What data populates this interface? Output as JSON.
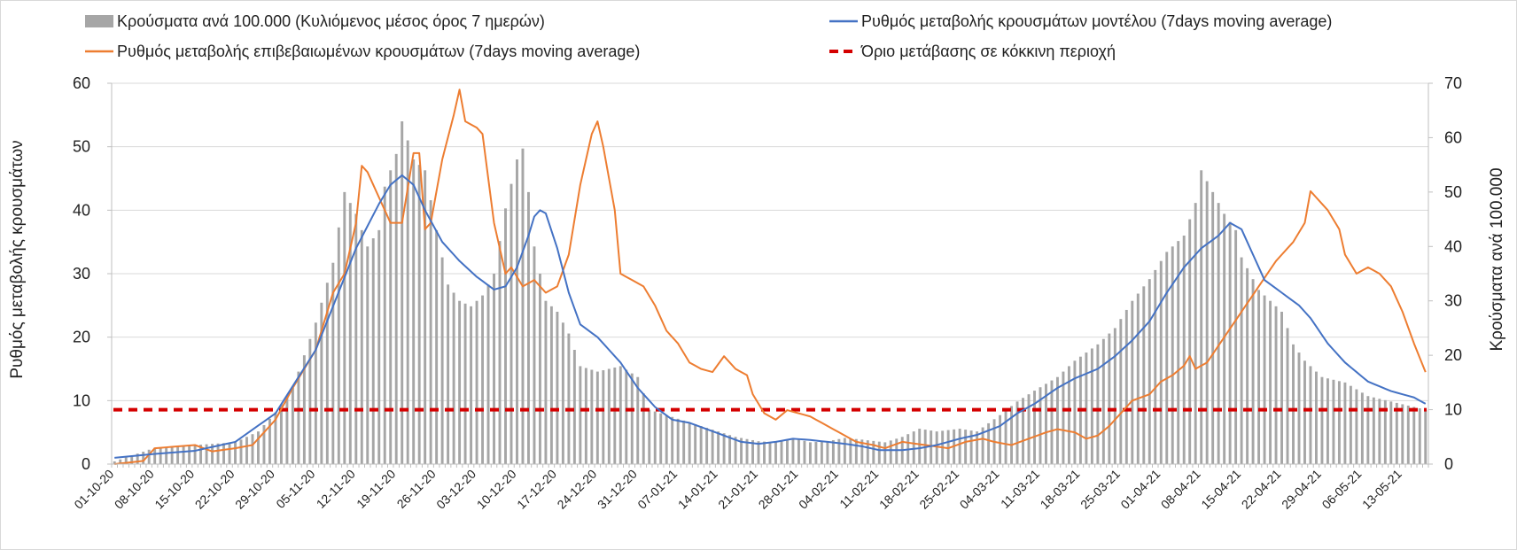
{
  "chart_data": {
    "type": "bar+line",
    "legend": {
      "placement": "top",
      "bars": "Κρούσματα ανά 100.000 (Κυλιόμενος μέσος όρος 7 ημερών)",
      "model_line": "Ρυθμός μεταβολής κρουσμάτων μοντέλου (7days moving average)",
      "confirmed_line": "Ρυθμός μεταβολής επιβεβαιωμένων κρουσμάτων (7days moving average)",
      "threshold_line": "Όριο μετάβασης σε κόκκινη περιοχή"
    },
    "ylabel_left": "Ρυθμός μεταβολής κρουσμάτων",
    "ylabel_right": "Κρούσματα ανά 100.000",
    "ylim_left": [
      0,
      60
    ],
    "ylim_right": [
      0,
      70
    ],
    "yticks_left": [
      "0",
      "10",
      "20",
      "30",
      "40",
      "50",
      "60"
    ],
    "yticks_right": [
      "0",
      "10",
      "20",
      "30",
      "40",
      "50",
      "60",
      "70"
    ],
    "grid": "horizontal",
    "x_start": "01-10-20",
    "x_end": "17-05-21",
    "xtick_labels": [
      "01-10-20",
      "08-10-20",
      "15-10-20",
      "22-10-20",
      "29-10-20",
      "05-11-20",
      "12-11-20",
      "19-11-20",
      "26-11-20",
      "03-12-20",
      "10-12-20",
      "17-12-20",
      "24-12-20",
      "31-12-20",
      "07-01-21",
      "14-01-21",
      "21-01-21",
      "28-01-21",
      "04-02-21",
      "11-02-21",
      "18-02-21",
      "25-02-21",
      "04-03-21",
      "11-03-21",
      "18-03-21",
      "25-03-21",
      "01-04-21",
      "08-04-21",
      "15-04-21",
      "22-04-21",
      "29-04-21",
      "06-05-21",
      "13-05-21"
    ],
    "threshold_right_axis": 10,
    "bars_anchors_per100k": [
      [
        0,
        0.5
      ],
      [
        7,
        3
      ],
      [
        14,
        3.5
      ],
      [
        21,
        4
      ],
      [
        25,
        6
      ],
      [
        28,
        9.5
      ],
      [
        31,
        14
      ],
      [
        35,
        26
      ],
      [
        38,
        37
      ],
      [
        40,
        50
      ],
      [
        42,
        46
      ],
      [
        44,
        40
      ],
      [
        46,
        43
      ],
      [
        47,
        51
      ],
      [
        49,
        57
      ],
      [
        50,
        63
      ],
      [
        52,
        56
      ],
      [
        54,
        54
      ],
      [
        56,
        43
      ],
      [
        58,
        33
      ],
      [
        60,
        30
      ],
      [
        62,
        29
      ],
      [
        64,
        31
      ],
      [
        66,
        35
      ],
      [
        68,
        47
      ],
      [
        70,
        56
      ],
      [
        71,
        58
      ],
      [
        72,
        50
      ],
      [
        73,
        40
      ],
      [
        75,
        30
      ],
      [
        77,
        28
      ],
      [
        79,
        24
      ],
      [
        81,
        18
      ],
      [
        84,
        17
      ],
      [
        88,
        18
      ],
      [
        91,
        16
      ],
      [
        92,
        13
      ],
      [
        93,
        10
      ],
      [
        96,
        9
      ],
      [
        99,
        8
      ],
      [
        102,
        7
      ],
      [
        105,
        6
      ],
      [
        108,
        5
      ],
      [
        112,
        4.2
      ],
      [
        115,
        4
      ],
      [
        118,
        4.8
      ],
      [
        121,
        4
      ],
      [
        124,
        4.2
      ],
      [
        127,
        4.8
      ],
      [
        130,
        4.5
      ],
      [
        134,
        4
      ],
      [
        137,
        5
      ],
      [
        140,
        6.5
      ],
      [
        143,
        6
      ],
      [
        147,
        6.5
      ],
      [
        150,
        6
      ],
      [
        154,
        9
      ],
      [
        157,
        11.5
      ],
      [
        160,
        13.5
      ],
      [
        164,
        16
      ],
      [
        167,
        19
      ],
      [
        171,
        22
      ],
      [
        174,
        25
      ],
      [
        177,
        30
      ],
      [
        180,
        34
      ],
      [
        183,
        39
      ],
      [
        186,
        42
      ],
      [
        188,
        48
      ],
      [
        189,
        54
      ],
      [
        190,
        52
      ],
      [
        191,
        50
      ],
      [
        193,
        46
      ],
      [
        195,
        43
      ],
      [
        196,
        38
      ],
      [
        199,
        32
      ],
      [
        203,
        28
      ],
      [
        205,
        22
      ],
      [
        207,
        19
      ],
      [
        210,
        16
      ],
      [
        214,
        15
      ],
      [
        218,
        12.5
      ],
      [
        226,
        10.5
      ],
      [
        228,
        10
      ]
    ],
    "model_anchors": [
      [
        0,
        1
      ],
      [
        7,
        1.6
      ],
      [
        14,
        2.1
      ],
      [
        21,
        3.5
      ],
      [
        28,
        8
      ],
      [
        35,
        18
      ],
      [
        42,
        34
      ],
      [
        46,
        41
      ],
      [
        48,
        44
      ],
      [
        50,
        45.5
      ],
      [
        52,
        44
      ],
      [
        54,
        40
      ],
      [
        57,
        35
      ],
      [
        60,
        32
      ],
      [
        63,
        29.5
      ],
      [
        66,
        27.5
      ],
      [
        68,
        28
      ],
      [
        70,
        31
      ],
      [
        72,
        36
      ],
      [
        73,
        39
      ],
      [
        74,
        40
      ],
      [
        75,
        39.5
      ],
      [
        77,
        34
      ],
      [
        79,
        27
      ],
      [
        81,
        22
      ],
      [
        84,
        20
      ],
      [
        88,
        16
      ],
      [
        91,
        12
      ],
      [
        94,
        9
      ],
      [
        97,
        7
      ],
      [
        100,
        6.5
      ],
      [
        103,
        5.5
      ],
      [
        106,
        4.5
      ],
      [
        109,
        3.5
      ],
      [
        112,
        3.2
      ],
      [
        115,
        3.5
      ],
      [
        118,
        4
      ],
      [
        121,
        3.8
      ],
      [
        124,
        3.5
      ],
      [
        127,
        3.2
      ],
      [
        130,
        2.8
      ],
      [
        133,
        2.2
      ],
      [
        137,
        2.2
      ],
      [
        140,
        2.5
      ],
      [
        143,
        3
      ],
      [
        147,
        4
      ],
      [
        150,
        4.6
      ],
      [
        154,
        6
      ],
      [
        157,
        8
      ],
      [
        160,
        9.5
      ],
      [
        164,
        12
      ],
      [
        167,
        13.5
      ],
      [
        171,
        15
      ],
      [
        174,
        17
      ],
      [
        177,
        19.5
      ],
      [
        180,
        22.5
      ],
      [
        183,
        27
      ],
      [
        186,
        31
      ],
      [
        189,
        34
      ],
      [
        192,
        36
      ],
      [
        194,
        38
      ],
      [
        196,
        37
      ],
      [
        198,
        33
      ],
      [
        200,
        29
      ],
      [
        203,
        27
      ],
      [
        206,
        25
      ],
      [
        208,
        23
      ],
      [
        211,
        19
      ],
      [
        214,
        16
      ],
      [
        218,
        13
      ],
      [
        222,
        11.5
      ],
      [
        226,
        10.5
      ],
      [
        228,
        9.5
      ]
    ],
    "confirmed_anchors": [
      [
        0,
        0
      ],
      [
        5,
        0.5
      ],
      [
        7,
        2.5
      ],
      [
        14,
        3
      ],
      [
        17,
        2
      ],
      [
        21,
        2.5
      ],
      [
        24,
        3
      ],
      [
        28,
        7
      ],
      [
        31,
        12
      ],
      [
        35,
        18
      ],
      [
        38,
        27
      ],
      [
        40,
        30
      ],
      [
        41,
        34
      ],
      [
        42,
        38
      ],
      [
        43,
        47
      ],
      [
        44,
        46
      ],
      [
        46,
        42
      ],
      [
        48,
        38
      ],
      [
        50,
        38
      ],
      [
        52,
        49
      ],
      [
        53,
        49
      ],
      [
        54,
        37
      ],
      [
        55,
        38
      ],
      [
        57,
        48
      ],
      [
        59,
        55
      ],
      [
        60,
        59
      ],
      [
        61,
        54
      ],
      [
        63,
        53
      ],
      [
        64,
        52
      ],
      [
        66,
        38
      ],
      [
        68,
        30
      ],
      [
        69,
        31
      ],
      [
        71,
        28
      ],
      [
        73,
        29
      ],
      [
        75,
        27
      ],
      [
        77,
        28
      ],
      [
        79,
        33
      ],
      [
        81,
        44
      ],
      [
        83,
        52
      ],
      [
        84,
        54
      ],
      [
        85,
        50
      ],
      [
        87,
        40
      ],
      [
        88,
        30
      ],
      [
        90,
        29
      ],
      [
        92,
        28
      ],
      [
        94,
        25
      ],
      [
        96,
        21
      ],
      [
        98,
        19
      ],
      [
        100,
        16
      ],
      [
        102,
        15
      ],
      [
        104,
        14.5
      ],
      [
        106,
        17
      ],
      [
        108,
        15
      ],
      [
        110,
        14
      ],
      [
        111,
        11
      ],
      [
        113,
        8
      ],
      [
        115,
        7
      ],
      [
        117,
        8.5
      ],
      [
        119,
        8
      ],
      [
        121,
        7.5
      ],
      [
        123,
        6.5
      ],
      [
        126,
        5
      ],
      [
        129,
        3.5
      ],
      [
        132,
        3
      ],
      [
        134,
        2.5
      ],
      [
        137,
        3.5
      ],
      [
        141,
        3
      ],
      [
        145,
        2.5
      ],
      [
        148,
        3.5
      ],
      [
        151,
        4
      ],
      [
        153,
        3.5
      ],
      [
        156,
        3
      ],
      [
        159,
        4
      ],
      [
        162,
        5
      ],
      [
        164,
        5.5
      ],
      [
        167,
        5
      ],
      [
        169,
        4
      ],
      [
        171,
        4.5
      ],
      [
        173,
        6
      ],
      [
        175,
        8
      ],
      [
        177,
        10
      ],
      [
        180,
        11
      ],
      [
        182,
        13
      ],
      [
        184,
        14
      ],
      [
        186,
        15.5
      ],
      [
        187,
        17
      ],
      [
        188,
        15
      ],
      [
        190,
        16
      ],
      [
        193,
        20
      ],
      [
        196,
        24
      ],
      [
        199,
        28
      ],
      [
        202,
        32
      ],
      [
        205,
        35
      ],
      [
        207,
        38
      ],
      [
        208,
        43
      ],
      [
        209,
        42
      ],
      [
        211,
        40
      ],
      [
        213,
        37
      ],
      [
        214,
        33
      ],
      [
        216,
        30
      ],
      [
        218,
        31
      ],
      [
        220,
        30
      ],
      [
        222,
        28
      ],
      [
        224,
        24
      ],
      [
        226,
        19
      ],
      [
        228,
        14.5
      ]
    ]
  }
}
